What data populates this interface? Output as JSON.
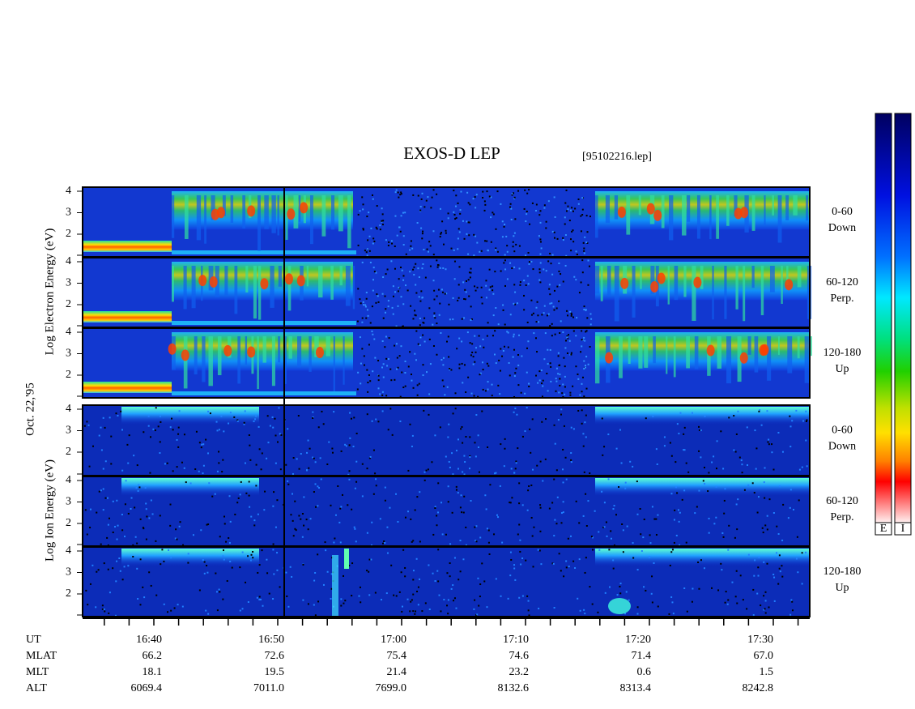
{
  "header": {
    "title": "EXOS-D LEP",
    "file": "[95102216.lep]"
  },
  "date": "Oct. 22,'95",
  "electron_axis": "Log Electron Energy (eV)",
  "ion_axis": "Log Ion Energy (eV)",
  "energy_ticks": [
    "4",
    "3",
    "2"
  ],
  "electron_panels": [
    {
      "angle": "0-60",
      "direction": "Down"
    },
    {
      "angle": "60-120",
      "direction": "Perp."
    },
    {
      "angle": "120-180",
      "direction": "Up"
    }
  ],
  "ion_panels": [
    {
      "angle": "0-60",
      "direction": "Down"
    },
    {
      "angle": "60-120",
      "direction": "Perp."
    },
    {
      "angle": "120-180",
      "direction": "Up"
    }
  ],
  "ephemeris": {
    "rows": [
      [
        "UT",
        "16:40",
        "16:50",
        "17:00",
        "17:10",
        "17:20",
        "17:30"
      ],
      [
        "MLAT",
        "66.2",
        "72.6",
        "75.4",
        "74.6",
        "71.4",
        "67.0"
      ],
      [
        "MLT",
        "18.1",
        "19.5",
        "21.4",
        "23.2",
        "0.6",
        "1.5"
      ],
      [
        "ALT",
        "6069.4",
        "7011.0",
        "7699.0",
        "8132.6",
        "8313.4",
        "8242.8"
      ]
    ]
  },
  "colorbar_labels": [
    "E",
    "I"
  ]
}
